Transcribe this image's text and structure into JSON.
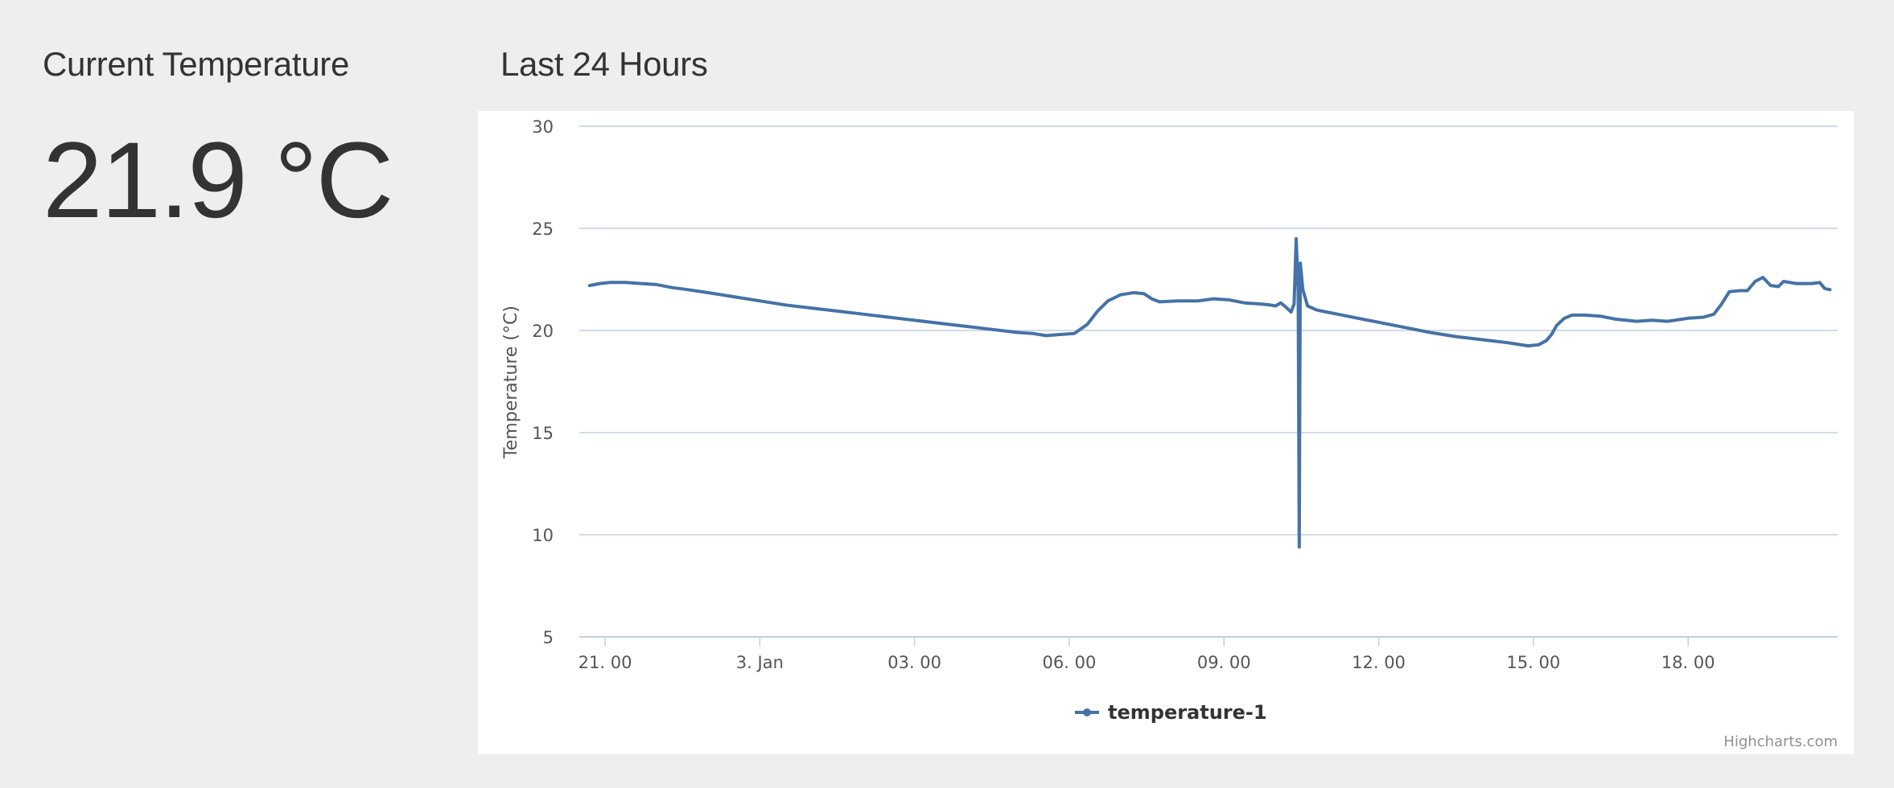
{
  "current": {
    "title": "Current Temperature",
    "value": "21.9 °C"
  },
  "history": {
    "title": "Last 24 Hours"
  },
  "colors": {
    "series": "#4572a7",
    "grid": "#c0d0e0",
    "axis": "#c0d0e0"
  },
  "chart_data": {
    "type": "line",
    "title": "",
    "xlabel": "",
    "ylabel": "Temperature (°C)",
    "ylim": [
      5,
      30
    ],
    "yticks": [
      5,
      10,
      15,
      20,
      25,
      30
    ],
    "xlim_hours": [
      20.5,
      44.9
    ],
    "xticks": [
      {
        "t": 21,
        "label": "21. 00"
      },
      {
        "t": 24,
        "label": "3. Jan"
      },
      {
        "t": 27,
        "label": "03. 00"
      },
      {
        "t": 30,
        "label": "06. 00"
      },
      {
        "t": 33,
        "label": "09. 00"
      },
      {
        "t": 36,
        "label": "12. 00"
      },
      {
        "t": 39,
        "label": "15. 00"
      },
      {
        "t": 42,
        "label": "18. 00"
      }
    ],
    "grid": true,
    "legend": "bottom-center",
    "series": [
      {
        "name": "temperature-1",
        "points": [
          [
            20.7,
            22.2
          ],
          [
            20.9,
            22.3
          ],
          [
            21.1,
            22.35
          ],
          [
            21.4,
            22.35
          ],
          [
            21.7,
            22.3
          ],
          [
            22.0,
            22.25
          ],
          [
            22.3,
            22.1
          ],
          [
            22.6,
            22.0
          ],
          [
            23.0,
            21.85
          ],
          [
            23.5,
            21.65
          ],
          [
            24.0,
            21.45
          ],
          [
            24.5,
            21.25
          ],
          [
            25.0,
            21.1
          ],
          [
            25.5,
            20.95
          ],
          [
            26.0,
            20.8
          ],
          [
            26.5,
            20.65
          ],
          [
            27.0,
            20.5
          ],
          [
            27.5,
            20.35
          ],
          [
            28.0,
            20.2
          ],
          [
            28.5,
            20.05
          ],
          [
            29.0,
            19.9
          ],
          [
            29.3,
            19.85
          ],
          [
            29.55,
            19.75
          ],
          [
            29.8,
            19.8
          ],
          [
            30.1,
            19.85
          ],
          [
            30.35,
            20.3
          ],
          [
            30.55,
            20.95
          ],
          [
            30.75,
            21.45
          ],
          [
            31.0,
            21.75
          ],
          [
            31.25,
            21.85
          ],
          [
            31.45,
            21.8
          ],
          [
            31.6,
            21.55
          ],
          [
            31.75,
            21.4
          ],
          [
            32.1,
            21.45
          ],
          [
            32.5,
            21.45
          ],
          [
            32.8,
            21.55
          ],
          [
            33.1,
            21.5
          ],
          [
            33.4,
            21.35
          ],
          [
            33.7,
            21.3
          ],
          [
            33.9,
            21.25
          ],
          [
            34.0,
            21.2
          ],
          [
            34.1,
            21.35
          ],
          [
            34.2,
            21.15
          ],
          [
            34.3,
            20.9
          ],
          [
            34.36,
            21.3
          ],
          [
            34.4,
            24.5
          ],
          [
            34.44,
            21.9
          ],
          [
            34.46,
            9.4
          ],
          [
            34.48,
            23.3
          ],
          [
            34.53,
            22.0
          ],
          [
            34.62,
            21.2
          ],
          [
            34.8,
            21.0
          ],
          [
            35.2,
            20.8
          ],
          [
            35.6,
            20.6
          ],
          [
            36.0,
            20.4
          ],
          [
            36.5,
            20.15
          ],
          [
            37.0,
            19.9
          ],
          [
            37.5,
            19.7
          ],
          [
            38.0,
            19.55
          ],
          [
            38.5,
            19.4
          ],
          [
            38.9,
            19.25
          ],
          [
            39.1,
            19.3
          ],
          [
            39.25,
            19.5
          ],
          [
            39.35,
            19.8
          ],
          [
            39.45,
            20.25
          ],
          [
            39.6,
            20.6
          ],
          [
            39.75,
            20.75
          ],
          [
            40.0,
            20.75
          ],
          [
            40.3,
            20.7
          ],
          [
            40.6,
            20.55
          ],
          [
            41.0,
            20.45
          ],
          [
            41.3,
            20.5
          ],
          [
            41.6,
            20.45
          ],
          [
            42.0,
            20.6
          ],
          [
            42.3,
            20.65
          ],
          [
            42.5,
            20.8
          ],
          [
            42.65,
            21.3
          ],
          [
            42.8,
            21.9
          ],
          [
            43.0,
            21.95
          ],
          [
            43.15,
            21.95
          ],
          [
            43.3,
            22.4
          ],
          [
            43.45,
            22.6
          ],
          [
            43.6,
            22.2
          ],
          [
            43.75,
            22.15
          ],
          [
            43.85,
            22.4
          ],
          [
            44.1,
            22.3
          ],
          [
            44.4,
            22.3
          ],
          [
            44.55,
            22.35
          ],
          [
            44.65,
            22.05
          ],
          [
            44.75,
            22.0
          ]
        ]
      }
    ],
    "credits": "Highcharts.com"
  }
}
